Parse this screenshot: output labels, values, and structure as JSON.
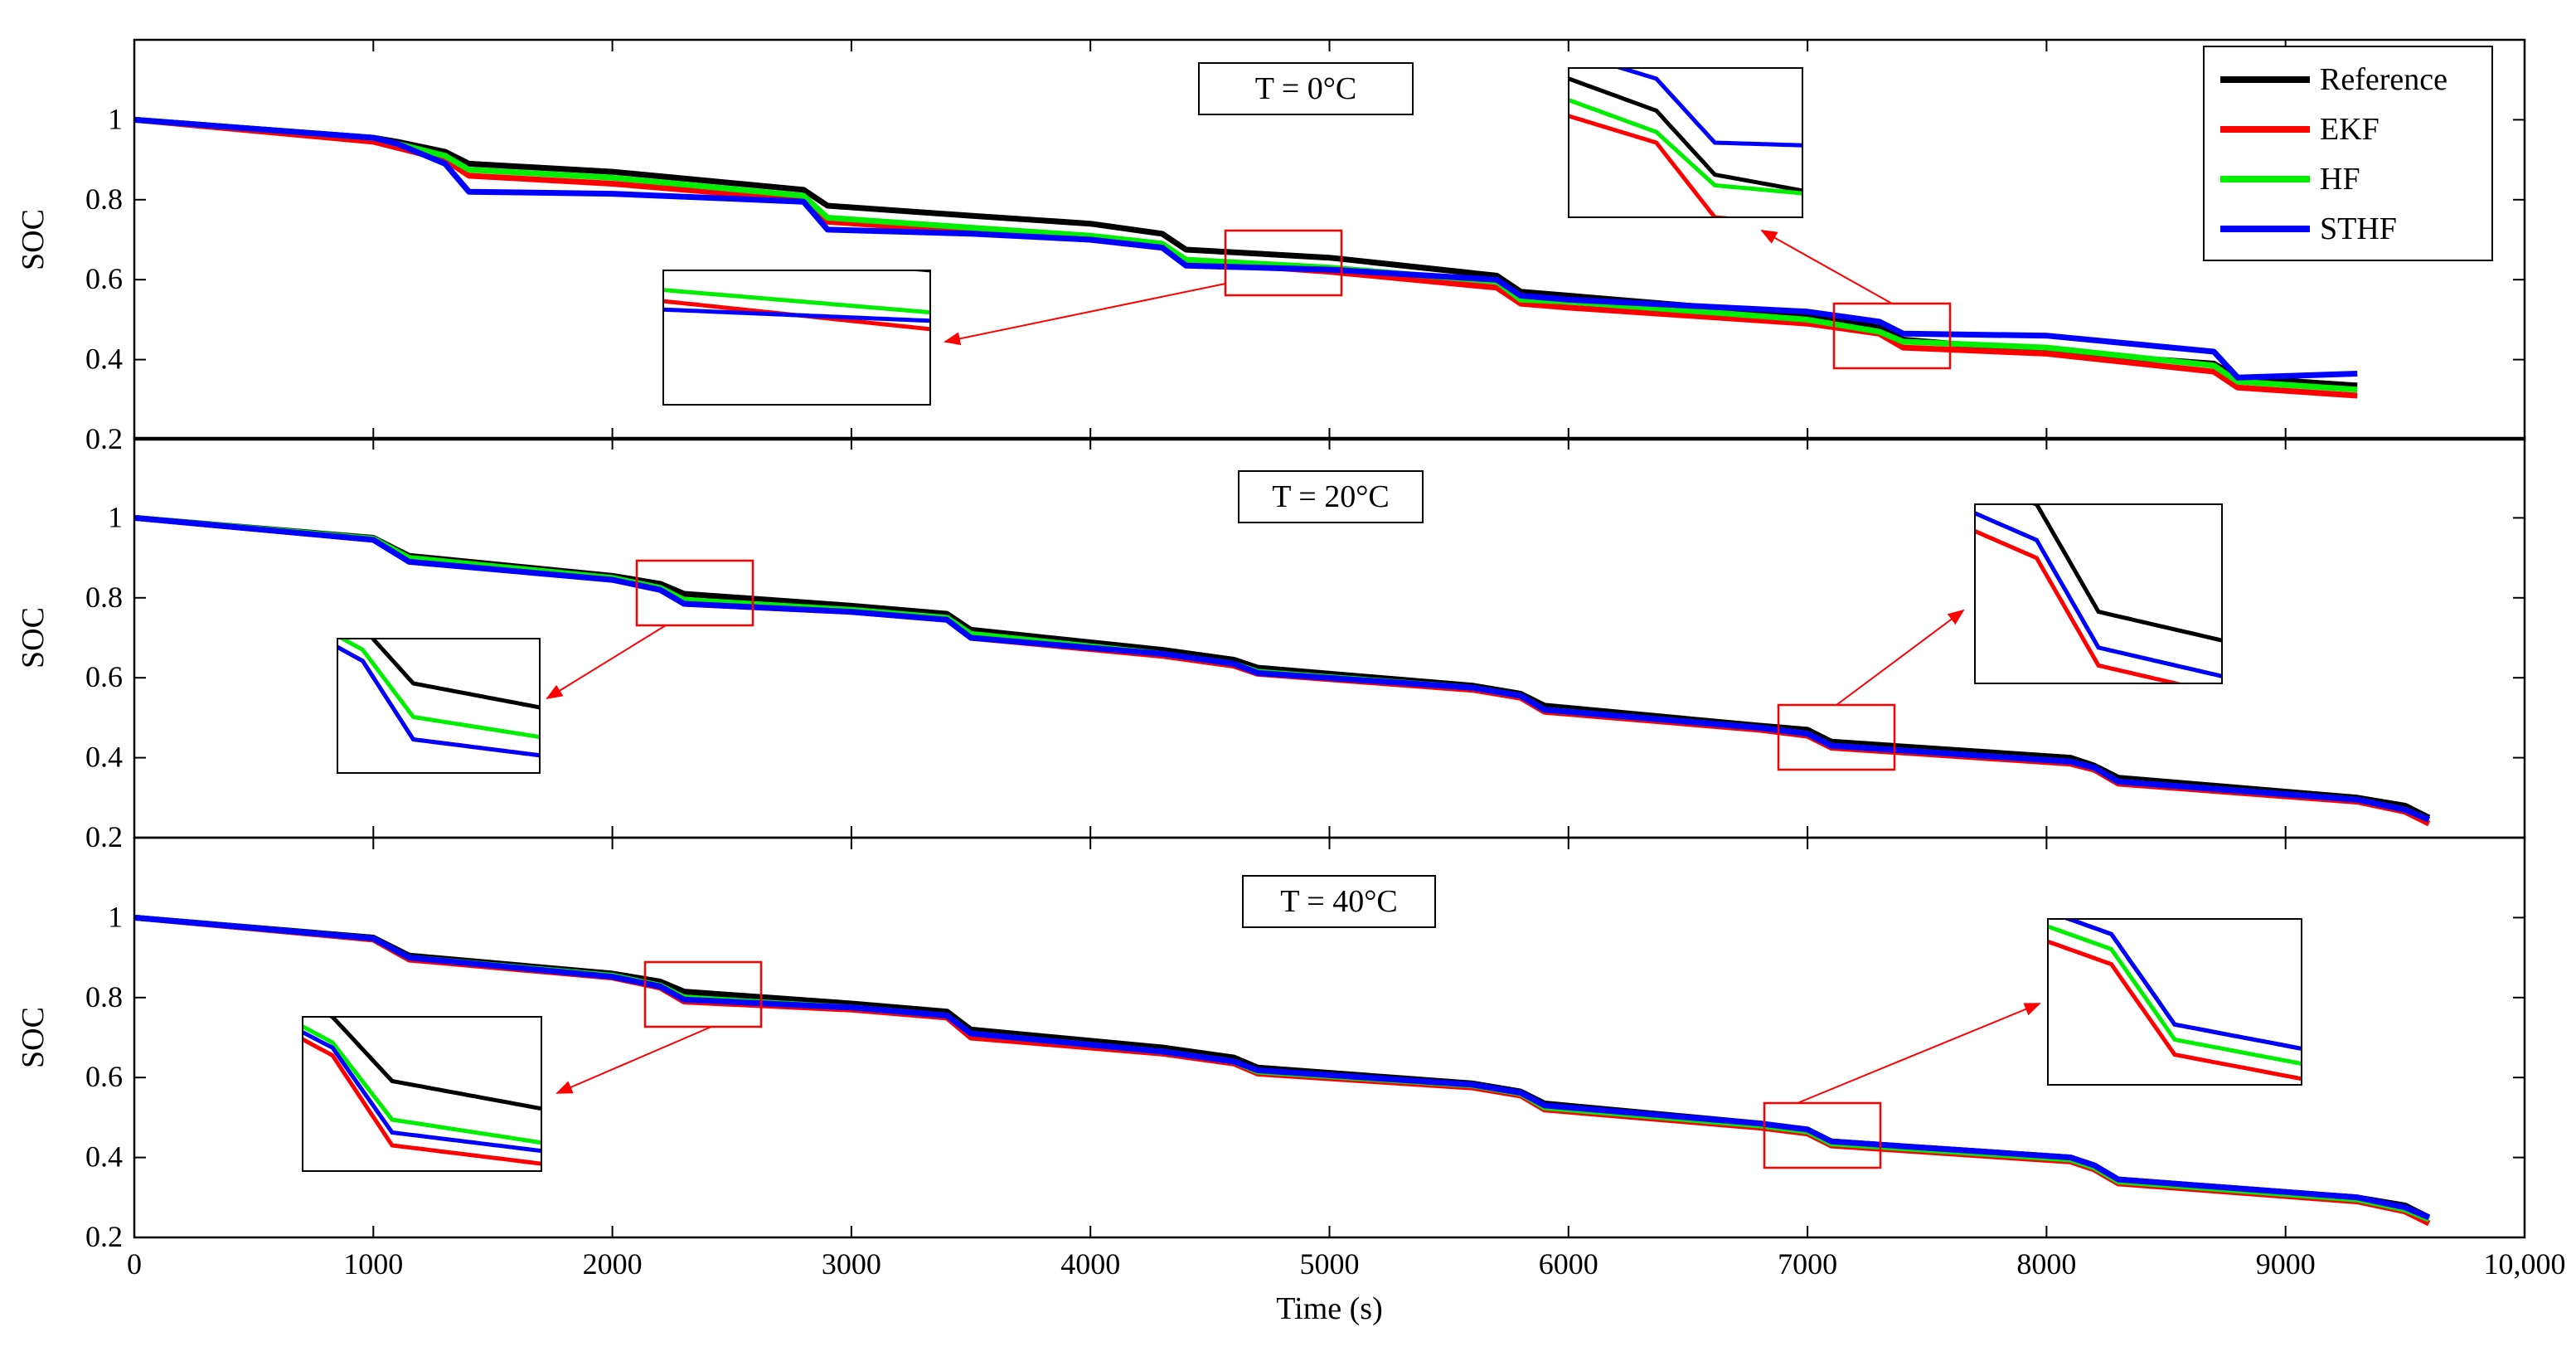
{
  "chart_data": {
    "type": "line",
    "xlabel": "Time (s)",
    "ylabel": "SOC",
    "xlim": [
      0,
      10000
    ],
    "ylim": [
      0.2,
      1.2
    ],
    "x_ticks": [
      0,
      1000,
      2000,
      3000,
      4000,
      5000,
      6000,
      7000,
      8000,
      9000,
      10000
    ],
    "x_tick_labels": [
      "0",
      "1000",
      "2000",
      "3000",
      "4000",
      "5000",
      "6000",
      "7000",
      "8000",
      "9000",
      "10,000"
    ],
    "y_ticks": [
      0.2,
      0.4,
      0.6,
      0.8,
      1.0
    ],
    "y_tick_labels": [
      "0.2",
      "0.4",
      "0.6",
      "0.8",
      "1"
    ],
    "legend": {
      "placement": "top-right",
      "entries": [
        {
          "name": "Reference",
          "color": "#000000"
        },
        {
          "name": "EKF",
          "color": "#ff0000"
        },
        {
          "name": "HF",
          "color": "#00ee00"
        },
        {
          "name": "STHF",
          "color": "#0000ff"
        }
      ]
    },
    "panels": [
      {
        "title": "T = 0°C",
        "series": [
          {
            "name": "Reference",
            "color": "#000000",
            "x": [
              0,
              1000,
              1100,
              1300,
              1400,
              2000,
              2800,
              2900,
              3500,
              4000,
              4300,
              4400,
              5000,
              5700,
              5800,
              6000,
              7000,
              7300,
              7400,
              8000,
              8700,
              8800,
              9300
            ],
            "y": [
              1.0,
              0.955,
              0.945,
              0.92,
              0.89,
              0.87,
              0.825,
              0.785,
              0.76,
              0.74,
              0.715,
              0.675,
              0.655,
              0.61,
              0.57,
              0.56,
              0.51,
              0.48,
              0.45,
              0.42,
              0.39,
              0.355,
              0.335
            ]
          },
          {
            "name": "EKF",
            "color": "#ff0000",
            "x": [
              0,
              1000,
              1100,
              1300,
              1400,
              2000,
              2800,
              2900,
              3500,
              4000,
              4300,
              4400,
              5000,
              5700,
              5800,
              6000,
              7000,
              7300,
              7400,
              8000,
              8700,
              8800,
              9300
            ],
            "y": [
              1.0,
              0.945,
              0.93,
              0.9,
              0.86,
              0.84,
              0.8,
              0.745,
              0.72,
              0.7,
              0.68,
              0.645,
              0.62,
              0.58,
              0.54,
              0.53,
              0.49,
              0.465,
              0.43,
              0.415,
              0.37,
              0.33,
              0.31
            ]
          },
          {
            "name": "HF",
            "color": "#00ee00",
            "x": [
              0,
              1000,
              1100,
              1300,
              1400,
              2000,
              2800,
              2900,
              3500,
              4000,
              4300,
              4400,
              5000,
              5700,
              5800,
              6000,
              7000,
              7300,
              7400,
              8000,
              8700,
              8800,
              9300
            ],
            "y": [
              1.0,
              0.955,
              0.94,
              0.91,
              0.875,
              0.855,
              0.81,
              0.755,
              0.73,
              0.71,
              0.69,
              0.65,
              0.63,
              0.595,
              0.55,
              0.545,
              0.5,
              0.47,
              0.445,
              0.43,
              0.385,
              0.345,
              0.325
            ]
          },
          {
            "name": "STHF",
            "color": "#0000ff",
            "x": [
              0,
              1000,
              1100,
              1300,
              1400,
              2000,
              2800,
              2900,
              3500,
              4000,
              4300,
              4400,
              5000,
              5700,
              5800,
              6000,
              7000,
              7300,
              7400,
              8000,
              8700,
              8800,
              9300
            ],
            "y": [
              1.0,
              0.955,
              0.94,
              0.89,
              0.82,
              0.815,
              0.795,
              0.725,
              0.715,
              0.7,
              0.68,
              0.635,
              0.625,
              0.6,
              0.56,
              0.55,
              0.52,
              0.495,
              0.465,
              0.46,
              0.42,
              0.355,
              0.365
            ]
          }
        ]
      },
      {
        "title": "T = 20°C",
        "series": [
          {
            "name": "Reference",
            "color": "#000000",
            "x": [
              0,
              1000,
              1150,
              2000,
              2200,
              2300,
              3000,
              3400,
              3500,
              4300,
              4600,
              4700,
              5600,
              5800,
              5900,
              6800,
              7000,
              7100,
              8100,
              8200,
              8300,
              9300,
              9500,
              9600
            ],
            "y": [
              1.0,
              0.95,
              0.905,
              0.855,
              0.835,
              0.81,
              0.78,
              0.76,
              0.72,
              0.67,
              0.645,
              0.625,
              0.58,
              0.56,
              0.53,
              0.48,
              0.47,
              0.44,
              0.4,
              0.38,
              0.35,
              0.3,
              0.28,
              0.25
            ]
          },
          {
            "name": "EKF",
            "color": "#ff0000",
            "x": [
              0,
              1000,
              1150,
              2000,
              2200,
              2300,
              3000,
              3400,
              3500,
              4300,
              4600,
              4700,
              5600,
              5800,
              5900,
              6800,
              7000,
              7100,
              8100,
              8200,
              8300,
              9300,
              9500,
              9600
            ],
            "y": [
              1.0,
              0.945,
              0.895,
              0.845,
              0.82,
              0.785,
              0.765,
              0.745,
              0.7,
              0.655,
              0.63,
              0.61,
              0.57,
              0.55,
              0.515,
              0.47,
              0.455,
              0.425,
              0.385,
              0.37,
              0.335,
              0.29,
              0.265,
              0.235
            ]
          },
          {
            "name": "HF",
            "color": "#00ee00",
            "x": [
              0,
              1000,
              1150,
              2000,
              2200,
              2300,
              3000,
              3400,
              3500,
              4300,
              4600,
              4700,
              5600,
              5800,
              5900,
              6800,
              7000,
              7100,
              8100,
              8200,
              8300,
              9300,
              9500,
              9600
            ],
            "y": [
              1.0,
              0.948,
              0.9,
              0.85,
              0.825,
              0.795,
              0.77,
              0.75,
              0.71,
              0.66,
              0.635,
              0.615,
              0.575,
              0.555,
              0.52,
              0.475,
              0.46,
              0.43,
              0.39,
              0.375,
              0.34,
              0.295,
              0.27,
              0.245
            ]
          },
          {
            "name": "STHF",
            "color": "#0000ff",
            "x": [
              0,
              1000,
              1150,
              2000,
              2200,
              2300,
              3000,
              3400,
              3500,
              4300,
              4600,
              4700,
              5600,
              5800,
              5900,
              6800,
              7000,
              7100,
              8100,
              8200,
              8300,
              9300,
              9500,
              9600
            ],
            "y": [
              1.0,
              0.945,
              0.89,
              0.845,
              0.82,
              0.785,
              0.765,
              0.745,
              0.7,
              0.66,
              0.635,
              0.612,
              0.575,
              0.555,
              0.52,
              0.475,
              0.46,
              0.43,
              0.39,
              0.375,
              0.34,
              0.295,
              0.27,
              0.245
            ]
          }
        ]
      },
      {
        "title": "T = 40°C",
        "series": [
          {
            "name": "Reference",
            "color": "#000000",
            "x": [
              0,
              1000,
              1150,
              2000,
              2200,
              2300,
              3000,
              3400,
              3500,
              4300,
              4600,
              4700,
              5600,
              5800,
              5900,
              6800,
              7000,
              7100,
              8100,
              8200,
              8300,
              9300,
              9500,
              9600
            ],
            "y": [
              1.0,
              0.95,
              0.905,
              0.86,
              0.84,
              0.815,
              0.785,
              0.765,
              0.72,
              0.675,
              0.65,
              0.625,
              0.585,
              0.565,
              0.535,
              0.485,
              0.47,
              0.44,
              0.4,
              0.38,
              0.345,
              0.3,
              0.28,
              0.25
            ]
          },
          {
            "name": "EKF",
            "color": "#ff0000",
            "x": [
              0,
              1000,
              1150,
              2000,
              2200,
              2300,
              3000,
              3400,
              3500,
              4300,
              4600,
              4700,
              5600,
              5800,
              5900,
              6800,
              7000,
              7100,
              8100,
              8200,
              8300,
              9300,
              9500,
              9600
            ],
            "y": [
              1.0,
              0.945,
              0.895,
              0.85,
              0.825,
              0.79,
              0.77,
              0.75,
              0.7,
              0.66,
              0.635,
              0.61,
              0.575,
              0.555,
              0.52,
              0.475,
              0.46,
              0.43,
              0.39,
              0.37,
              0.335,
              0.29,
              0.265,
              0.235
            ]
          },
          {
            "name": "HF",
            "color": "#00ee00",
            "x": [
              0,
              1000,
              1150,
              2000,
              2200,
              2300,
              3000,
              3400,
              3500,
              4300,
              4600,
              4700,
              5600,
              5800,
              5900,
              6800,
              7000,
              7100,
              8100,
              8200,
              8300,
              9300,
              9500,
              9600
            ],
            "y": [
              1.0,
              0.948,
              0.9,
              0.855,
              0.83,
              0.8,
              0.775,
              0.755,
              0.71,
              0.665,
              0.64,
              0.615,
              0.58,
              0.56,
              0.525,
              0.48,
              0.465,
              0.435,
              0.395,
              0.375,
              0.34,
              0.295,
              0.27,
              0.245
            ]
          },
          {
            "name": "STHF",
            "color": "#0000ff",
            "x": [
              0,
              1000,
              1150,
              2000,
              2200,
              2300,
              3000,
              3400,
              3500,
              4300,
              4600,
              4700,
              5600,
              5800,
              5900,
              6800,
              7000,
              7100,
              8100,
              8200,
              8300,
              9300,
              9500,
              9600
            ],
            "y": [
              1.0,
              0.948,
              0.9,
              0.852,
              0.828,
              0.795,
              0.775,
              0.755,
              0.71,
              0.665,
              0.64,
              0.618,
              0.582,
              0.562,
              0.53,
              0.485,
              0.47,
              0.44,
              0.4,
              0.38,
              0.345,
              0.3,
              0.275,
              0.25
            ]
          }
        ]
      }
    ]
  }
}
